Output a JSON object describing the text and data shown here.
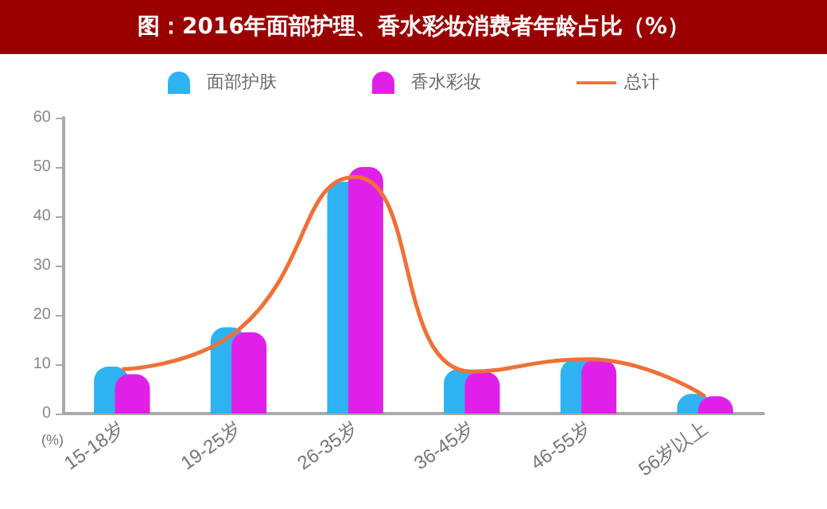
{
  "chart_data": {
    "type": "bar",
    "title": "图：2016年面部护理、香水彩妆消费者年龄占比（%）",
    "ylabel": "(%)",
    "categories": [
      "15-18岁",
      "19-25岁",
      "26-35岁",
      "36-45岁",
      "46-55岁",
      "56岁以上"
    ],
    "series": [
      {
        "name": "面部护肤",
        "color": "#2eb2f2",
        "values": [
          9.5,
          17.5,
          47,
          9,
          11,
          4
        ]
      },
      {
        "name": "香水彩妆",
        "color": "#e020e8",
        "values": [
          8,
          16.5,
          50,
          8.5,
          11,
          3.5
        ]
      },
      {
        "name": "总计",
        "type": "line",
        "color": "#f07036",
        "values": [
          9,
          17,
          48,
          8.5,
          11,
          3.5
        ]
      }
    ],
    "ylim": [
      0,
      60
    ],
    "yticks": [
      0,
      10,
      20,
      30,
      40,
      50,
      60
    ],
    "legend": "top",
    "grid": false,
    "marker": "none"
  }
}
